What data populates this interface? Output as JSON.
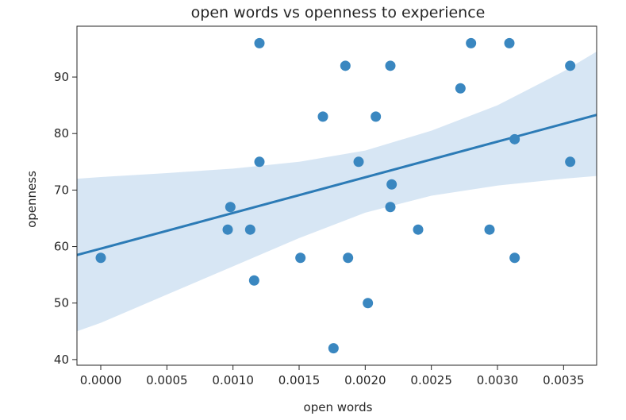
{
  "chart_data": {
    "type": "scatter",
    "title": "open words vs openness to experience",
    "xlabel": "open words",
    "ylabel": "openness",
    "xlim": [
      -0.00018,
      0.00375
    ],
    "ylim": [
      39,
      99
    ],
    "xticks": [
      0.0,
      0.0005,
      0.001,
      0.0015,
      0.002,
      0.0025,
      0.003,
      0.0035
    ],
    "xtick_labels": [
      "0.0000",
      "0.0005",
      "0.0010",
      "0.0015",
      "0.0020",
      "0.0025",
      "0.0030",
      "0.0035"
    ],
    "yticks": [
      40,
      50,
      60,
      70,
      80,
      90
    ],
    "ytick_labels": [
      "40",
      "50",
      "60",
      "70",
      "80",
      "90"
    ],
    "grid": false,
    "colors": {
      "points": "#3a87c0",
      "line": "#2c7bb6",
      "band": "#c6dbef"
    },
    "points": [
      {
        "x": 0.0,
        "y": 58
      },
      {
        "x": 0.00096,
        "y": 63
      },
      {
        "x": 0.00098,
        "y": 67
      },
      {
        "x": 0.00113,
        "y": 63
      },
      {
        "x": 0.00116,
        "y": 54
      },
      {
        "x": 0.0012,
        "y": 96
      },
      {
        "x": 0.0012,
        "y": 75
      },
      {
        "x": 0.00151,
        "y": 58
      },
      {
        "x": 0.00168,
        "y": 83
      },
      {
        "x": 0.00176,
        "y": 42
      },
      {
        "x": 0.00185,
        "y": 92
      },
      {
        "x": 0.00187,
        "y": 58
      },
      {
        "x": 0.00195,
        "y": 75
      },
      {
        "x": 0.00202,
        "y": 50
      },
      {
        "x": 0.00208,
        "y": 83
      },
      {
        "x": 0.00219,
        "y": 92
      },
      {
        "x": 0.00219,
        "y": 67
      },
      {
        "x": 0.0022,
        "y": 71
      },
      {
        "x": 0.0024,
        "y": 63
      },
      {
        "x": 0.00272,
        "y": 88
      },
      {
        "x": 0.0028,
        "y": 96
      },
      {
        "x": 0.00294,
        "y": 63
      },
      {
        "x": 0.00309,
        "y": 96
      },
      {
        "x": 0.00313,
        "y": 79
      },
      {
        "x": 0.00313,
        "y": 58
      },
      {
        "x": 0.00355,
        "y": 92
      },
      {
        "x": 0.00355,
        "y": 75
      }
    ],
    "regression": {
      "x": [
        -0.00018,
        0.00375
      ],
      "y": [
        58.5,
        83.3
      ]
    },
    "confidence_band": {
      "x": [
        -0.00018,
        0.0,
        0.0005,
        0.001,
        0.0015,
        0.002,
        0.0025,
        0.003,
        0.0035,
        0.00375
      ],
      "upper": [
        72.0,
        72.3,
        73.0,
        73.8,
        75.0,
        77.0,
        80.5,
        85.0,
        91.0,
        94.5
      ],
      "lower": [
        45.0,
        46.5,
        51.5,
        56.5,
        61.5,
        66.0,
        69.0,
        70.8,
        72.0,
        72.5
      ]
    }
  }
}
